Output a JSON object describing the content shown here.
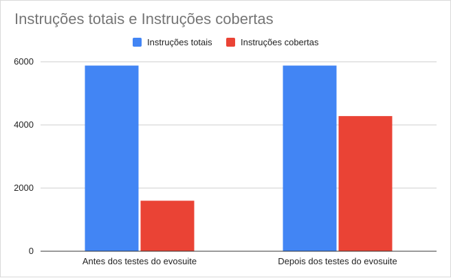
{
  "chart_data": {
    "type": "bar",
    "title": "Instruções totais e Instruções cobertas",
    "categories": [
      "Antes dos testes do evosuite",
      "Depois dos testes do evosuite"
    ],
    "series": [
      {
        "name": "Instruções totais",
        "color": "#4285f4",
        "values": [
          5880,
          5880
        ]
      },
      {
        "name": "Instruções cobertas",
        "color": "#ea4335",
        "values": [
          1600,
          4280
        ]
      }
    ],
    "yticks": [
      0,
      2000,
      4000,
      6000
    ],
    "ylim": [
      0,
      6000
    ],
    "grid": true,
    "legend_position": "top"
  }
}
